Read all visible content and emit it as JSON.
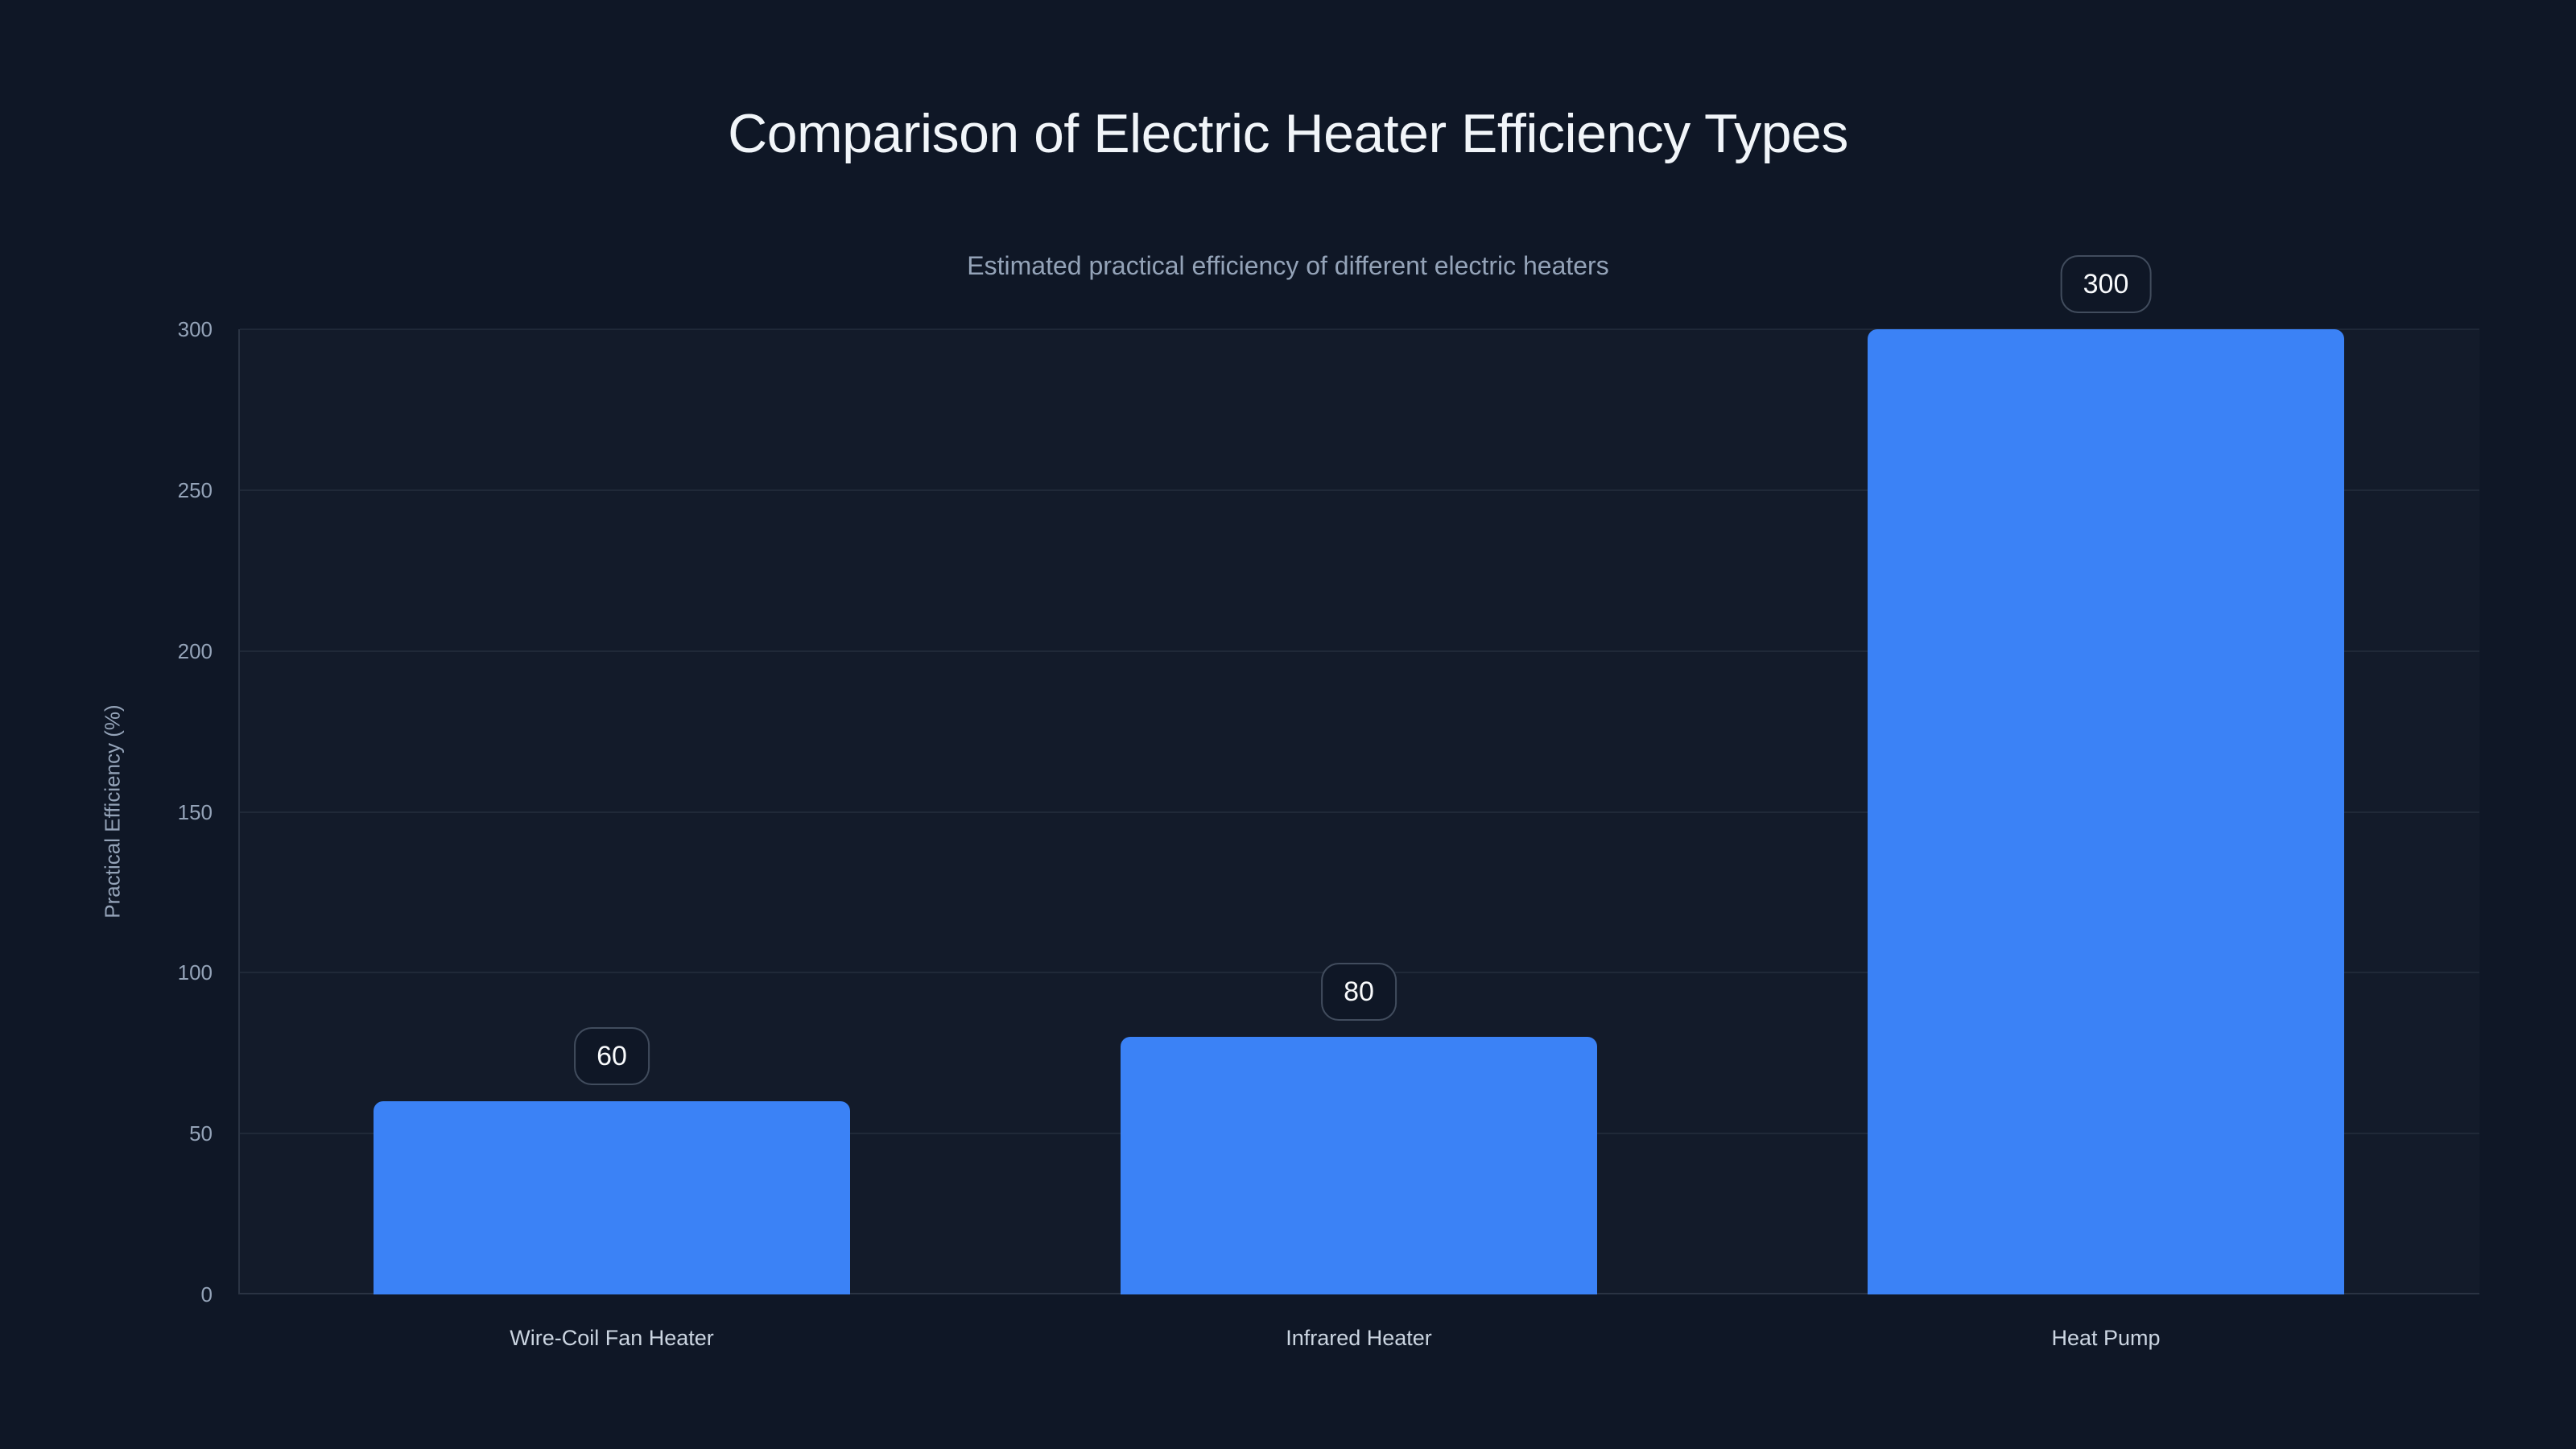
{
  "chart_data": {
    "type": "bar",
    "title": "Comparison of Electric Heater Efficiency Types",
    "subtitle": "Estimated practical efficiency of different electric heaters",
    "categories": [
      "Wire-Coil Fan Heater",
      "Infrared Heater",
      "Heat Pump"
    ],
    "values": [
      60,
      80,
      300
    ],
    "value_labels": [
      "60",
      "80",
      "300"
    ],
    "xlabel": "",
    "ylabel": "Practical Efficiency (%)",
    "ylim": [
      0,
      300
    ],
    "yticks": [
      0,
      50,
      100,
      150,
      200,
      250,
      300
    ],
    "grid": true,
    "legend": false,
    "bar_color": "#3b82f6",
    "background_color": "#0f1726",
    "title_color": "#f1f5f9",
    "subtitle_color": "#94a3b8",
    "tick_label_color": "#94a3b8",
    "category_label_color": "#cbd5e1",
    "badge_text_color": "#f8fafc"
  }
}
